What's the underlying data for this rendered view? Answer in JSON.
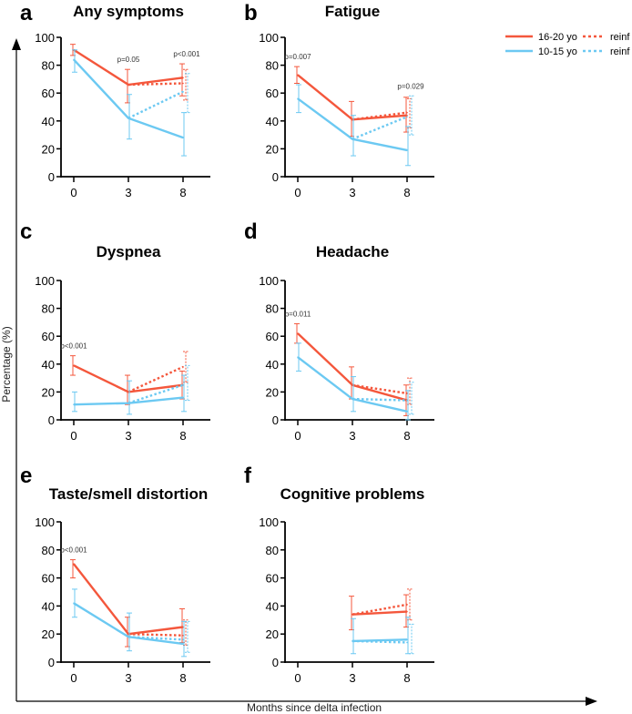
{
  "colors": {
    "older": "#f4573c",
    "younger": "#6cc9f2"
  },
  "legend": [
    {
      "label": "16-20 yo",
      "series": "older",
      "style": "solid"
    },
    {
      "label": "reinf",
      "series": "older",
      "style": "dotted"
    },
    {
      "label": "10-15 yo",
      "series": "younger",
      "style": "solid"
    },
    {
      "label": "reinf",
      "series": "younger",
      "style": "dotted"
    }
  ],
  "ylabel": "Percentage (%)",
  "xlabel": "Months since delta infection",
  "chart_data": [
    {
      "type": "line",
      "letter": "a",
      "title": "Any symptoms",
      "categories": [
        "0",
        "3",
        "8"
      ],
      "ylim": [
        0,
        100
      ],
      "yticks": [
        0,
        20,
        40,
        60,
        80,
        100
      ],
      "series": [
        {
          "name": "16-20 yo",
          "color": "older",
          "style": "solid",
          "values": [
            91,
            66,
            71
          ],
          "err": [
            [
              87,
              95
            ],
            [
              53,
              77
            ],
            [
              58,
              81
            ]
          ]
        },
        {
          "name": "16-20 yo reinf",
          "color": "older",
          "style": "dotted",
          "values": [
            null,
            66,
            67
          ],
          "err": [
            null,
            null,
            [
              55,
              77
            ]
          ]
        },
        {
          "name": "10-15 yo",
          "color": "younger",
          "style": "solid",
          "values": [
            84,
            42,
            28
          ],
          "err": [
            [
              75,
              91
            ],
            [
              27,
              59
            ],
            [
              15,
              46
            ]
          ]
        },
        {
          "name": "10-15 yo reinf",
          "color": "younger",
          "style": "dotted",
          "values": [
            null,
            42,
            61
          ],
          "err": [
            null,
            null,
            [
              46,
              74
            ]
          ]
        }
      ],
      "annotations": [
        {
          "text": "p=0.05",
          "x": "3"
        },
        {
          "text": "p<0.001",
          "x": "8"
        }
      ]
    },
    {
      "type": "line",
      "letter": "b",
      "title": "Fatigue",
      "categories": [
        "0",
        "3",
        "8"
      ],
      "ylim": [
        0,
        100
      ],
      "yticks": [
        0,
        20,
        40,
        60,
        80,
        100
      ],
      "series": [
        {
          "name": "16-20 yo",
          "color": "older",
          "style": "solid",
          "values": [
            73,
            41,
            44
          ],
          "err": [
            [
              67,
              79
            ],
            [
              29,
              54
            ],
            [
              32,
              57
            ]
          ]
        },
        {
          "name": "16-20 yo reinf",
          "color": "older",
          "style": "dotted",
          "values": [
            null,
            41,
            46
          ],
          "err": [
            null,
            null,
            [
              35,
              56
            ]
          ]
        },
        {
          "name": "10-15 yo",
          "color": "younger",
          "style": "solid",
          "values": [
            56,
            27,
            19
          ],
          "err": [
            [
              46,
              66
            ],
            [
              15,
              44
            ],
            [
              8,
              36
            ]
          ]
        },
        {
          "name": "10-15 yo reinf",
          "color": "younger",
          "style": "dotted",
          "values": [
            null,
            27,
            43
          ],
          "err": [
            null,
            null,
            [
              30,
              58
            ]
          ]
        }
      ],
      "annotations": [
        {
          "text": "p=0.007",
          "x": "0"
        },
        {
          "text": "p=0.029",
          "x": "8"
        }
      ]
    },
    {
      "type": "line",
      "letter": "c",
      "title": "Dyspnea",
      "categories": [
        "0",
        "3",
        "8"
      ],
      "ylim": [
        0,
        100
      ],
      "yticks": [
        0,
        20,
        40,
        60,
        80,
        100
      ],
      "series": [
        {
          "name": "16-20 yo",
          "color": "older",
          "style": "solid",
          "values": [
            39,
            20,
            25
          ],
          "err": [
            [
              32,
              46
            ],
            [
              11,
              32
            ],
            [
              15,
              35
            ]
          ]
        },
        {
          "name": "16-20 yo reinf",
          "color": "older",
          "style": "dotted",
          "values": [
            null,
            20,
            38
          ],
          "err": [
            null,
            null,
            [
              27,
              49
            ]
          ]
        },
        {
          "name": "10-15 yo",
          "color": "younger",
          "style": "solid",
          "values": [
            11,
            12,
            16
          ],
          "err": [
            [
              6,
              20
            ],
            [
              4,
              28
            ],
            [
              6,
              32
            ]
          ]
        },
        {
          "name": "10-15 yo reinf",
          "color": "younger",
          "style": "dotted",
          "values": [
            null,
            12,
            25
          ],
          "err": [
            null,
            null,
            [
              14,
              39
            ]
          ]
        }
      ],
      "annotations": [
        {
          "text": "p<0.001",
          "x": "0"
        }
      ]
    },
    {
      "type": "line",
      "letter": "d",
      "title": "Headache",
      "categories": [
        "0",
        "3",
        "8"
      ],
      "ylim": [
        0,
        100
      ],
      "yticks": [
        0,
        20,
        40,
        60,
        80,
        100
      ],
      "series": [
        {
          "name": "16-20 yo",
          "color": "older",
          "style": "solid",
          "values": [
            62,
            25,
            14
          ],
          "err": [
            [
              55,
              69
            ],
            [
              15,
              38
            ],
            [
              3,
              25
            ]
          ]
        },
        {
          "name": "16-20 yo reinf",
          "color": "older",
          "style": "dotted",
          "values": [
            null,
            25,
            19
          ],
          "err": [
            null,
            null,
            [
              11,
              30
            ]
          ]
        },
        {
          "name": "10-15 yo",
          "color": "younger",
          "style": "solid",
          "values": [
            45,
            15,
            6
          ],
          "err": [
            [
              35,
              55
            ],
            [
              6,
              31
            ],
            [
              0,
              21
            ]
          ]
        },
        {
          "name": "10-15 yo reinf",
          "color": "younger",
          "style": "dotted",
          "values": [
            null,
            15,
            14
          ],
          "err": [
            null,
            null,
            [
              4,
              27
            ]
          ]
        }
      ],
      "annotations": [
        {
          "text": "p=0.011",
          "x": "0"
        }
      ]
    },
    {
      "type": "line",
      "letter": "e",
      "title": "Taste/smell distortion",
      "categories": [
        "0",
        "3",
        "8"
      ],
      "ylim": [
        0,
        100
      ],
      "yticks": [
        0,
        20,
        40,
        60,
        80,
        100
      ],
      "series": [
        {
          "name": "16-20 yo",
          "color": "older",
          "style": "solid",
          "values": [
            70,
            20,
            25
          ],
          "err": [
            [
              60,
              73
            ],
            [
              11,
              32
            ],
            [
              14,
              38
            ]
          ]
        },
        {
          "name": "16-20 yo reinf",
          "color": "older",
          "style": "dotted",
          "values": [
            null,
            20,
            19
          ],
          "err": [
            null,
            null,
            [
              12,
              30
            ]
          ]
        },
        {
          "name": "10-15 yo",
          "color": "younger",
          "style": "solid",
          "values": [
            42,
            18,
            13
          ],
          "err": [
            [
              32,
              52
            ],
            [
              8,
              35
            ],
            [
              4,
              29
            ]
          ]
        },
        {
          "name": "10-15 yo reinf",
          "color": "younger",
          "style": "dotted",
          "values": [
            null,
            18,
            16
          ],
          "err": [
            null,
            null,
            [
              7,
              29
            ]
          ]
        }
      ],
      "annotations": [
        {
          "text": "p<0.001",
          "x": "0"
        }
      ]
    },
    {
      "type": "line",
      "letter": "f",
      "title": "Cognitive problems",
      "categories": [
        "0",
        "3",
        "8"
      ],
      "ylim": [
        0,
        100
      ],
      "yticks": [
        0,
        20,
        40,
        60,
        80,
        100
      ],
      "series": [
        {
          "name": "16-20 yo",
          "color": "older",
          "style": "solid",
          "values": [
            null,
            34,
            36
          ],
          "err": [
            null,
            [
              23,
              47
            ],
            [
              25,
              48
            ]
          ]
        },
        {
          "name": "16-20 yo reinf",
          "color": "older",
          "style": "dotted",
          "values": [
            null,
            34,
            41
          ],
          "err": [
            null,
            null,
            [
              30,
              52
            ]
          ]
        },
        {
          "name": "10-15 yo",
          "color": "younger",
          "style": "solid",
          "values": [
            null,
            15,
            16
          ],
          "err": [
            null,
            [
              6,
              31
            ],
            [
              6,
              32
            ]
          ]
        },
        {
          "name": "10-15 yo reinf",
          "color": "younger",
          "style": "dotted",
          "values": [
            null,
            15,
            14
          ],
          "err": [
            null,
            null,
            [
              6,
              27
            ]
          ]
        }
      ],
      "annotations": []
    }
  ]
}
